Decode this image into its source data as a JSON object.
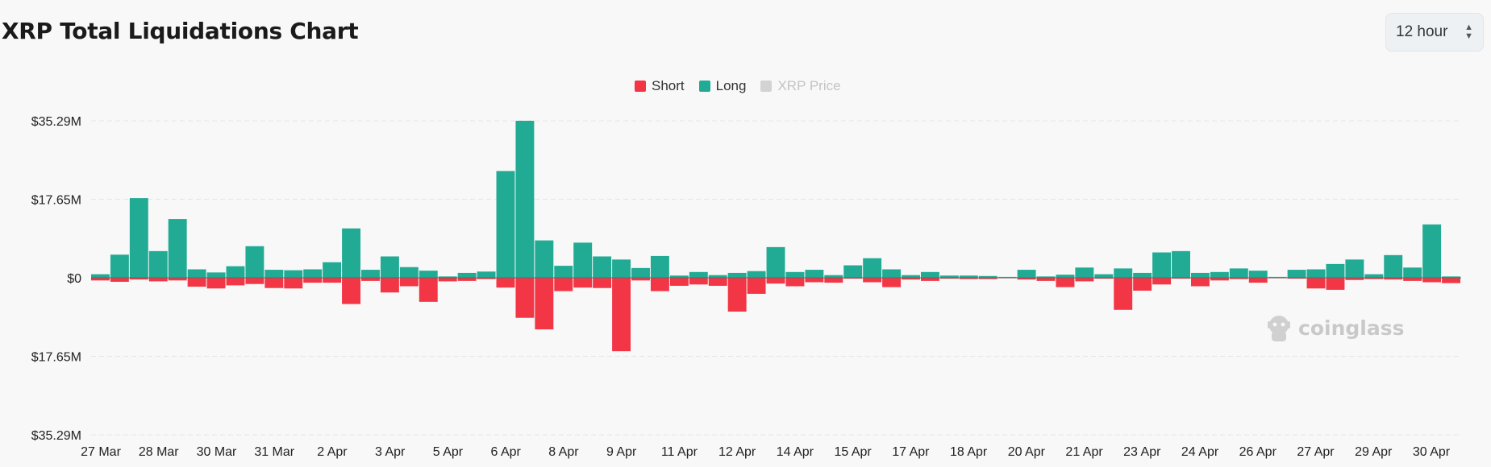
{
  "title": "XRP Total Liquidations Chart",
  "interval_select": {
    "value": "12 hour"
  },
  "legend": [
    {
      "label": "Short",
      "color": "#f23645",
      "enabled": true
    },
    {
      "label": "Long",
      "color": "#22ab94",
      "enabled": true
    },
    {
      "label": "XRP Price",
      "color": "#d3d3d3",
      "enabled": false
    }
  ],
  "watermark": "coinglass",
  "chart_data": {
    "type": "bar",
    "stacked": "diverging",
    "yticks": [
      "$35.29M",
      "$17.65M",
      "$0",
      "$17.65M",
      "$35.29M"
    ],
    "ylim": [
      -35.29,
      35.29
    ],
    "yunit": "$M",
    "xticks": [
      "27 Mar",
      "28 Mar",
      "30 Mar",
      "31 Mar",
      "2 Apr",
      "3 Apr",
      "5 Apr",
      "6 Apr",
      "8 Apr",
      "9 Apr",
      "11 Apr",
      "12 Apr",
      "14 Apr",
      "15 Apr",
      "17 Apr",
      "18 Apr",
      "20 Apr",
      "21 Apr",
      "23 Apr",
      "24 Apr",
      "26 Apr",
      "27 Apr",
      "29 Apr",
      "30 Apr"
    ],
    "grid": true,
    "series": [
      {
        "name": "Long",
        "color": "#22ab94",
        "values": [
          0.8,
          5.2,
          17.9,
          6.0,
          13.2,
          1.9,
          1.2,
          2.6,
          7.1,
          1.8,
          1.7,
          1.9,
          3.5,
          11.1,
          1.8,
          4.8,
          2.4,
          1.6,
          0.3,
          1.1,
          1.4,
          24.0,
          35.29,
          8.4,
          2.7,
          7.9,
          4.8,
          4.1,
          2.2,
          4.9,
          0.5,
          1.3,
          0.6,
          1.1,
          1.5,
          6.9,
          1.3,
          1.8,
          0.6,
          2.8,
          4.4,
          1.9,
          0.6,
          1.3,
          0.5,
          0.5,
          0.4,
          0.2,
          1.8,
          0.3,
          0.7,
          2.3,
          0.8,
          2.1,
          1.1,
          5.7,
          6.0,
          1.1,
          1.3,
          2.1,
          1.6,
          0.2,
          1.8,
          1.9,
          3.1,
          4.1,
          0.8,
          5.1,
          2.3,
          12.0,
          0.3
        ],
        "short": [
          -0.6,
          -0.9,
          -0.4,
          -0.8,
          -0.6,
          -2.0,
          -2.4,
          -1.7,
          -1.4,
          -2.3,
          -2.4,
          -1.1,
          -1.1,
          -5.9,
          -0.7,
          -3.3,
          -1.9,
          -5.4,
          -0.8,
          -0.7,
          -0.3,
          -2.2,
          -9.0,
          -11.6,
          -3.0,
          -2.2,
          -2.3,
          -16.5,
          -0.6,
          -3.0,
          -1.8,
          -1.5,
          -1.8,
          -7.6,
          -3.6,
          -1.3,
          -1.9,
          -1.0,
          -1.1,
          -0.2,
          -1.0,
          -2.1,
          -0.4,
          -0.7,
          -0.2,
          -0.3,
          -0.3,
          -0.1,
          -0.4,
          -0.7,
          -2.1,
          -0.8,
          -0.2,
          -7.2,
          -2.9,
          -1.5,
          -0.2,
          -1.9,
          -0.6,
          -0.3,
          -1.1,
          -0.1,
          -0.2,
          -2.4,
          -2.7,
          -0.5,
          -0.3,
          -0.4,
          -0.7,
          -1.0,
          -1.2
        ]
      },
      {
        "name": "Short",
        "color": "#f23645"
      }
    ]
  }
}
